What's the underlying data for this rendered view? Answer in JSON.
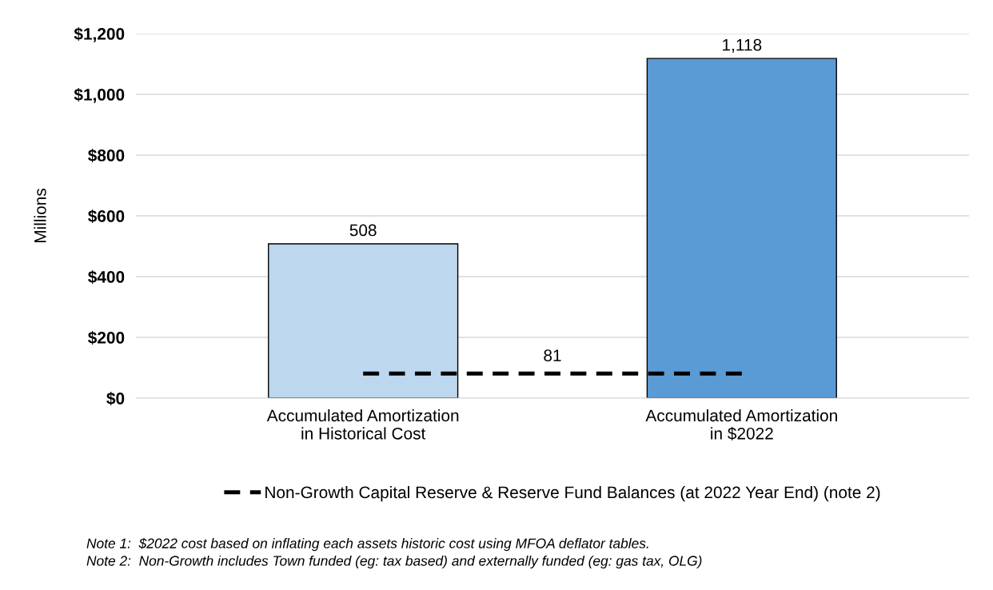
{
  "chart_data": {
    "type": "bar",
    "ylabel": "Millions",
    "categories": [
      "Accumulated Amortization\nin Historical Cost",
      "Accumulated Amortization\nin $2022"
    ],
    "series": [
      {
        "colors": [
          "#bdd7ee",
          "#5b9bd5"
        ],
        "values": [
          508,
          1118
        ],
        "value_labels": [
          "508",
          "1,118"
        ]
      },
      {
        "type": "line",
        "name": "Non-Growth Capital Reserve & Reserve Fund Balances (at 2022 Year End) (note 2)",
        "color": "#000000",
        "values": [
          81,
          81
        ],
        "line_style": "dashed",
        "marker": "none"
      }
    ],
    "ylim": [
      0,
      1200
    ],
    "yticks": [
      {
        "value": 0,
        "label": "$0"
      },
      {
        "value": 200,
        "label": "$200"
      },
      {
        "value": 400,
        "label": "$400"
      },
      {
        "value": 600,
        "label": "$600"
      },
      {
        "value": 800,
        "label": "$800"
      },
      {
        "value": 1000,
        "label": "$1,000"
      },
      {
        "value": 1200,
        "label": "$1,200"
      }
    ],
    "grid": "y",
    "legend": "bottom",
    "annotations": [
      {
        "text": "81",
        "y": 81
      },
      "Note 1:  $2022 cost based on inflating each assets historic cost using MFOA deflator tables.",
      "Note 2:  Non-Growth includes Town funded (eg: tax based) and externally funded (eg: gas tax, OLG)"
    ]
  }
}
